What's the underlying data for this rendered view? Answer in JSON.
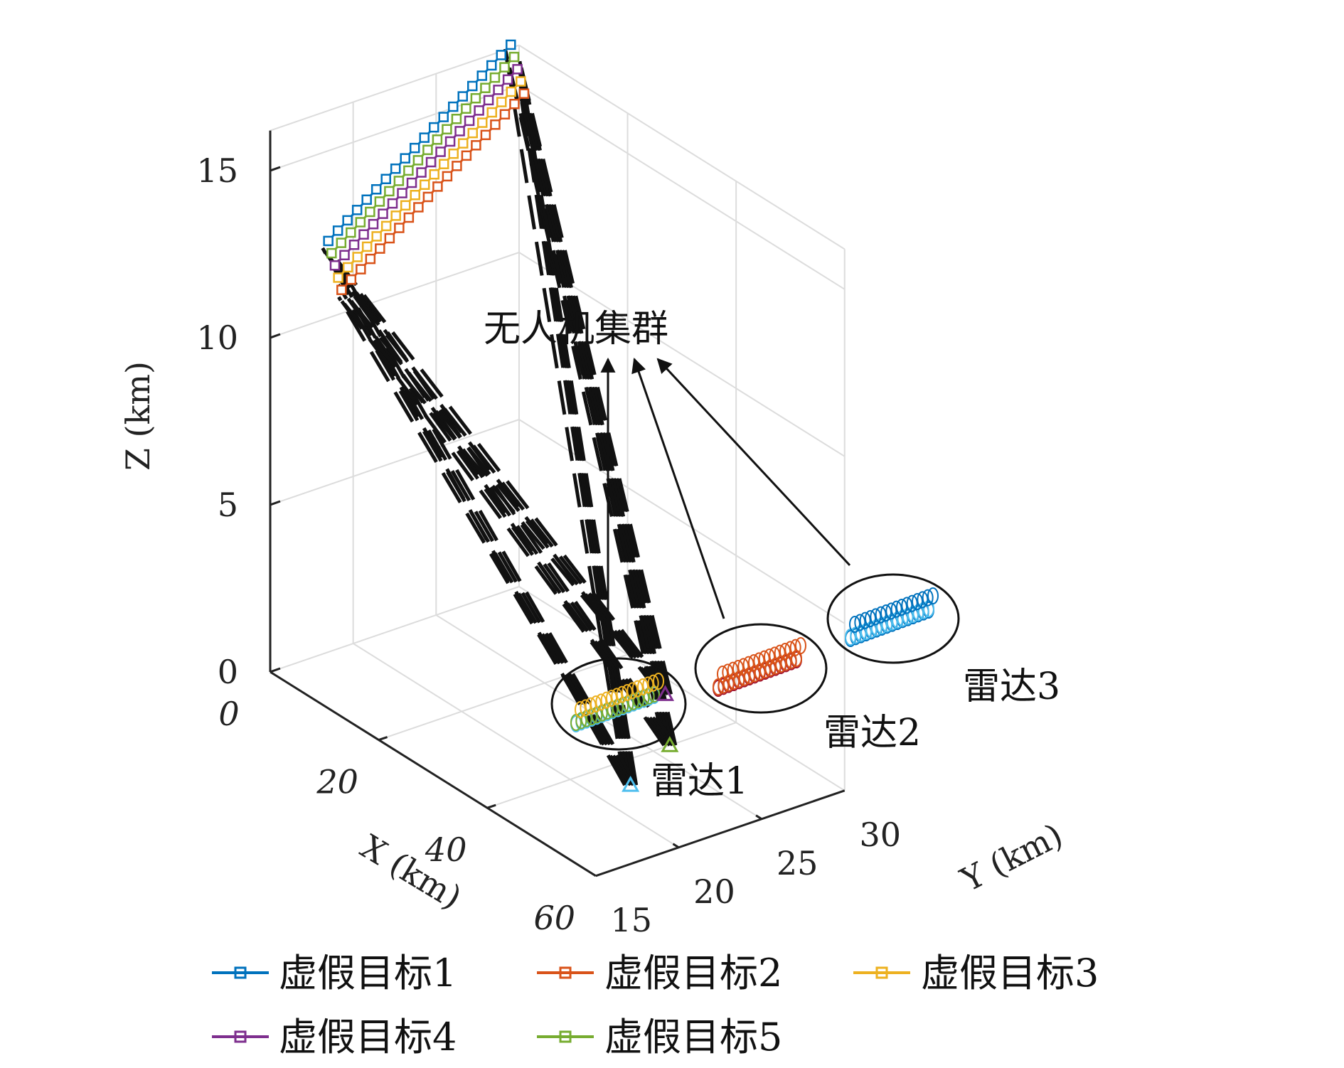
{
  "chart_data": {
    "type": "line3d",
    "xlabel": "X (km)",
    "ylabel": "Y (km)",
    "zlabel": "Z (km)",
    "x_ticks": [
      "0",
      "20",
      "40",
      "60"
    ],
    "y_ticks": [
      "15",
      "20",
      "25",
      "30"
    ],
    "z_ticks": [
      "0",
      "5",
      "10",
      "15"
    ],
    "xlim": [
      0,
      60
    ],
    "ylim": [
      15,
      30
    ],
    "zlim": [
      0,
      16
    ],
    "grid": true,
    "legend_position": "bottom",
    "series": [
      {
        "name": "虚假目标1",
        "color": "#0072BD",
        "marker": "square",
        "start": [
          0,
          18.5,
          12.3
        ],
        "end": [
          0,
          29.5,
          16.3
        ]
      },
      {
        "name": "虚假目标2",
        "color": "#D95319",
        "marker": "square",
        "start": [
          0,
          19.3,
          10.7
        ],
        "end": [
          0,
          30.3,
          14.7
        ]
      },
      {
        "name": "虚假目标3",
        "color": "#EDB120",
        "marker": "square",
        "start": [
          0,
          19.1,
          11.1
        ],
        "end": [
          0,
          30.1,
          15.1
        ]
      },
      {
        "name": "虚假目标4",
        "color": "#7E2F8E",
        "marker": "square",
        "start": [
          0,
          18.9,
          11.5
        ],
        "end": [
          0,
          29.9,
          15.5
        ]
      },
      {
        "name": "虚假目标5",
        "color": "#77AC30",
        "marker": "square",
        "start": [
          0,
          18.7,
          11.9
        ],
        "end": [
          0,
          29.7,
          15.9
        ]
      }
    ],
    "radars": [
      {
        "label": "雷达1",
        "color": "#4DBEEE",
        "position": [
          45,
          22,
          0
        ]
      },
      {
        "label": "雷达2",
        "color": "#77AC30",
        "position": [
          40,
          26,
          0
        ]
      },
      {
        "label": "雷达3",
        "color": "#7E2F8E",
        "position": [
          30,
          29,
          0
        ]
      }
    ],
    "annotations": [
      "无人机集群"
    ]
  }
}
